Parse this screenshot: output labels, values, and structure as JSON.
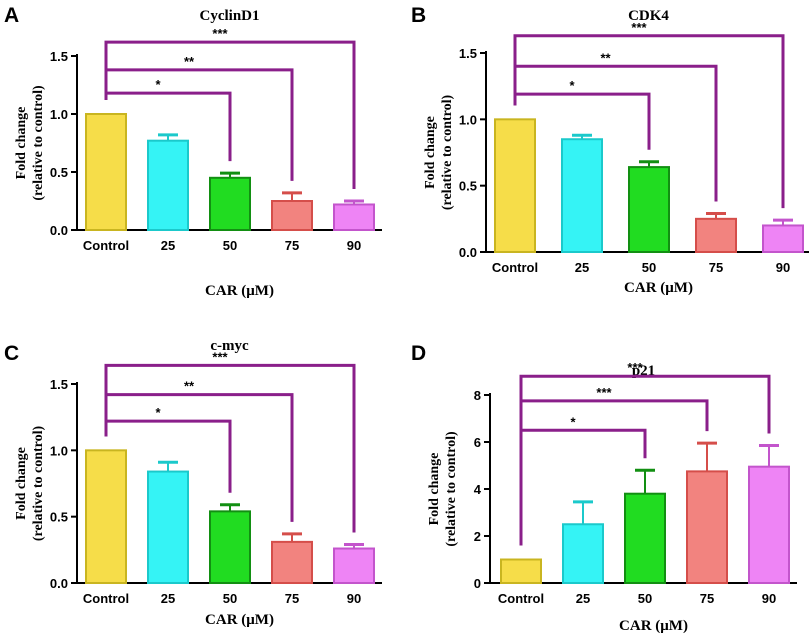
{
  "chart_data": [
    {
      "type": "bar",
      "panel": "A",
      "title": "CyclinD1",
      "ylabel_line1": "Fold change",
      "ylabel_line2": "(relative to control)",
      "xlabel": "CAR (μM)",
      "ylim": [
        0,
        1.5
      ],
      "yticks": [
        "0.0",
        "0.5",
        "1.0",
        "1.5"
      ],
      "ytick_values": [
        0,
        0.5,
        1.0,
        1.5
      ],
      "categories": [
        "Control",
        "25",
        "50",
        "75",
        "90"
      ],
      "values": [
        1.0,
        0.77,
        0.45,
        0.25,
        0.22
      ],
      "errors": [
        0,
        0.05,
        0.04,
        0.07,
        0.03
      ],
      "significance": [
        {
          "to": "50",
          "label": "*",
          "level": 1.18
        },
        {
          "to": "75",
          "label": "**",
          "level": 1.38
        },
        {
          "to": "90",
          "label": "***",
          "level": 1.62
        }
      ]
    },
    {
      "type": "bar",
      "panel": "B",
      "title": "CDK4",
      "ylabel_line1": "Fold change",
      "ylabel_line2": "(relative to control)",
      "xlabel": "CAR (μM)",
      "ylim": [
        0,
        1.5
      ],
      "yticks": [
        "0.0",
        "0.5",
        "1.0",
        "1.5"
      ],
      "ytick_values": [
        0,
        0.5,
        1.0,
        1.5
      ],
      "categories": [
        "Control",
        "25",
        "50",
        "75",
        "90"
      ],
      "values": [
        1.0,
        0.85,
        0.64,
        0.25,
        0.2
      ],
      "errors": [
        0,
        0.03,
        0.04,
        0.04,
        0.04
      ],
      "significance": [
        {
          "to": "50",
          "label": "*",
          "level": 1.19
        },
        {
          "to": "75",
          "label": "**",
          "level": 1.4
        },
        {
          "to": "90",
          "label": "***",
          "level": 1.63
        }
      ]
    },
    {
      "type": "bar",
      "panel": "C",
      "title": "c-myc",
      "ylabel_line1": "Fold change",
      "ylabel_line2": "(relative to control)",
      "xlabel": "CAR (μM)",
      "ylim": [
        0,
        1.5
      ],
      "yticks": [
        "0.0",
        "0.5",
        "1.0",
        "1.5"
      ],
      "ytick_values": [
        0,
        0.5,
        1.0,
        1.5
      ],
      "categories": [
        "Control",
        "25",
        "50",
        "75",
        "90"
      ],
      "values": [
        1.0,
        0.84,
        0.54,
        0.31,
        0.26
      ],
      "errors": [
        0,
        0.07,
        0.05,
        0.06,
        0.03
      ],
      "significance": [
        {
          "to": "50",
          "label": "*",
          "level": 1.22
        },
        {
          "to": "75",
          "label": "**",
          "level": 1.42
        },
        {
          "to": "90",
          "label": "***",
          "level": 1.64
        }
      ]
    },
    {
      "type": "bar",
      "panel": "D",
      "title": "p21",
      "ylabel_line1": "Fold change",
      "ylabel_line2": "(relative to control)",
      "xlabel": "CAR (μM)",
      "ylim": [
        0,
        8
      ],
      "yticks": [
        "0",
        "2",
        "4",
        "6",
        "8"
      ],
      "ytick_values": [
        0,
        2,
        4,
        6,
        8
      ],
      "categories": [
        "Control",
        "25",
        "50",
        "75",
        "90"
      ],
      "values": [
        1.0,
        2.5,
        3.8,
        4.75,
        4.95
      ],
      "errors": [
        0,
        0.95,
        1.0,
        1.2,
        0.9
      ],
      "significance": [
        {
          "to": "50",
          "label": "*",
          "level": 6.5
        },
        {
          "to": "75",
          "label": "***",
          "level": 7.75
        },
        {
          "to": "90",
          "label": "***",
          "level": 8.8
        }
      ]
    }
  ],
  "colors": {
    "bar_fills": [
      "#f6dd49",
      "#35f3f5",
      "#21dc21",
      "#f2837f",
      "#ee84f5"
    ],
    "bar_strokes": [
      "#c9b520",
      "#1bc9cb",
      "#128f12",
      "#d54e4a",
      "#c355cc"
    ],
    "bracket": "#8a1f8a",
    "axis": "#000000"
  }
}
